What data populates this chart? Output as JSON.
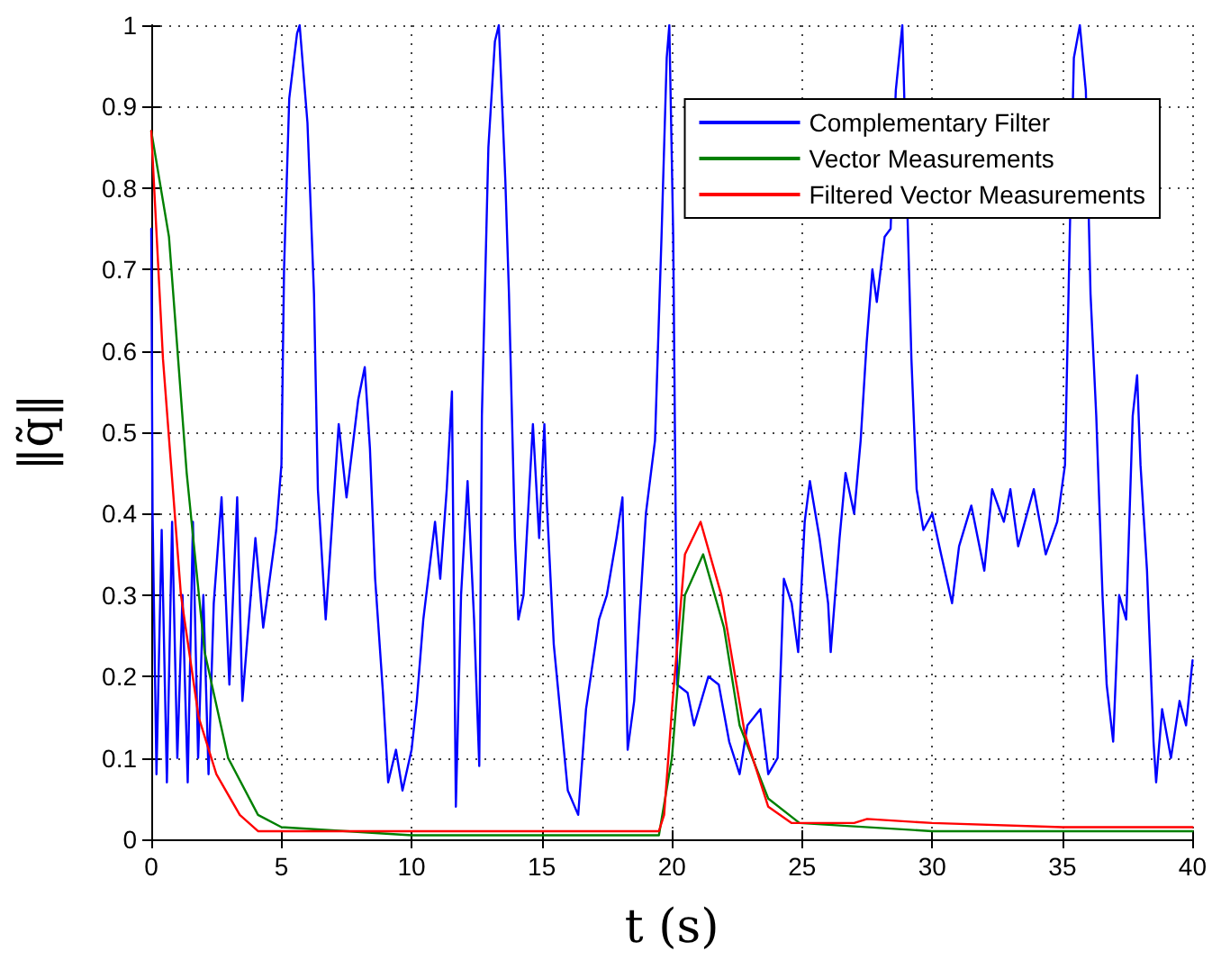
{
  "chart_data": {
    "type": "line",
    "xlabel": "t (s)",
    "ylabel": "‖q̃‖",
    "xlim": [
      0,
      40
    ],
    "xticks": [
      0,
      5,
      10,
      15,
      20,
      25,
      30,
      35,
      40
    ],
    "ylim": [
      0,
      1
    ],
    "yticks": [
      0,
      0.1,
      0.2,
      0.3,
      0.4,
      0.5,
      0.6,
      0.7,
      0.8,
      0.9,
      1
    ],
    "grid": true,
    "legend": "top right",
    "marker": "none",
    "line_style": "solid",
    "series": [
      {
        "name": "Complementary Filter",
        "color": "#0000ff",
        "x": [
          0,
          0.05,
          0.2,
          0.4,
          0.6,
          0.8,
          1.0,
          1.2,
          1.4,
          1.6,
          1.8,
          2.0,
          2.2,
          2.4,
          2.7,
          3.0,
          3.3,
          3.5,
          4.0,
          4.3,
          4.8,
          5.0,
          5.1,
          5.3,
          5.6,
          5.7,
          6.0,
          6.25,
          6.4,
          6.7,
          6.95,
          7.2,
          7.5,
          7.95,
          8.2,
          8.4,
          8.6,
          8.9,
          9.1,
          9.4,
          9.65,
          10.0,
          10.2,
          10.45,
          10.9,
          11.1,
          11.35,
          11.55,
          11.7,
          11.9,
          12.15,
          12.4,
          12.6,
          12.7,
          12.95,
          13.2,
          13.35,
          13.6,
          13.74,
          13.97,
          14.1,
          14.3,
          14.66,
          14.9,
          15.1,
          15.2,
          15.46,
          15.7,
          16.0,
          16.4,
          16.7,
          17.2,
          17.5,
          17.87,
          18.1,
          18.3,
          18.55,
          19.0,
          19.35,
          19.6,
          19.8,
          19.9,
          20.05,
          20.2,
          20.6,
          20.85,
          21.4,
          21.8,
          22.2,
          22.6,
          22.9,
          23.4,
          23.7,
          24.06,
          24.3,
          24.6,
          24.85,
          25.1,
          25.3,
          25.67,
          26.0,
          26.1,
          26.44,
          26.67,
          27.0,
          27.25,
          27.48,
          27.7,
          27.87,
          28.17,
          28.4,
          28.6,
          28.85,
          29.0,
          29.2,
          29.4,
          29.66,
          30.0,
          30.34,
          30.76,
          31.03,
          31.5,
          32.0,
          32.3,
          32.75,
          33.0,
          33.3,
          33.9,
          34.36,
          34.8,
          35.1,
          35.28,
          35.44,
          35.67,
          35.9,
          36.08,
          36.3,
          36.54,
          36.7,
          36.95,
          37.18,
          37.45,
          37.7,
          37.87,
          38.0,
          38.25,
          38.5,
          38.6,
          38.83,
          39.17,
          39.5,
          39.75,
          40
        ],
        "values": [
          0.75,
          0.4,
          0.08,
          0.38,
          0.07,
          0.39,
          0.1,
          0.3,
          0.07,
          0.39,
          0.1,
          0.3,
          0.08,
          0.29,
          0.42,
          0.19,
          0.42,
          0.17,
          0.37,
          0.26,
          0.38,
          0.46,
          0.7,
          0.91,
          0.99,
          1.0,
          0.88,
          0.67,
          0.43,
          0.27,
          0.39,
          0.51,
          0.42,
          0.54,
          0.58,
          0.48,
          0.32,
          0.18,
          0.07,
          0.11,
          0.06,
          0.11,
          0.17,
          0.27,
          0.39,
          0.32,
          0.43,
          0.55,
          0.04,
          0.3,
          0.44,
          0.27,
          0.09,
          0.52,
          0.85,
          0.98,
          1.0,
          0.81,
          0.67,
          0.37,
          0.27,
          0.3,
          0.51,
          0.37,
          0.51,
          0.41,
          0.24,
          0.16,
          0.06,
          0.03,
          0.16,
          0.27,
          0.3,
          0.37,
          0.42,
          0.11,
          0.17,
          0.4,
          0.49,
          0.74,
          0.96,
          1.0,
          0.74,
          0.19,
          0.18,
          0.14,
          0.2,
          0.19,
          0.12,
          0.08,
          0.14,
          0.16,
          0.08,
          0.1,
          0.32,
          0.29,
          0.23,
          0.39,
          0.44,
          0.37,
          0.29,
          0.23,
          0.37,
          0.45,
          0.4,
          0.49,
          0.61,
          0.7,
          0.66,
          0.74,
          0.75,
          0.92,
          1.0,
          null,
          0.59,
          0.43,
          0.38,
          0.4,
          0.35,
          0.29,
          0.36,
          0.41,
          0.33,
          0.43,
          0.39,
          0.43,
          0.36,
          0.43,
          0.35,
          0.39,
          0.46,
          0.74,
          0.96,
          1.0,
          0.92,
          0.67,
          0.52,
          0.3,
          0.19,
          0.12,
          0.3,
          0.27,
          0.52,
          0.57,
          0.46,
          0.33,
          0.12,
          0.07,
          0.16,
          0.1,
          0.17,
          0.14,
          0.22
        ]
      },
      {
        "name": "Vector Measurements",
        "color": "#008000",
        "x": [
          0,
          0.68,
          1.36,
          2.05,
          2.95,
          4.1,
          5,
          10,
          15,
          19.5,
          20,
          20.5,
          21.2,
          22,
          22.6,
          23.7,
          24.9,
          30,
          35,
          40
        ],
        "values": [
          0.87,
          0.74,
          0.45,
          0.23,
          0.1,
          0.03,
          0.015,
          0.005,
          0.005,
          0.005,
          0.1,
          0.3,
          0.35,
          0.26,
          0.14,
          0.05,
          0.02,
          0.01,
          0.01,
          0.01
        ]
      },
      {
        "name": "Filtered Vector Measurements",
        "color": "#ff0000",
        "x": [
          0,
          0.45,
          1.14,
          1.82,
          2.5,
          3.4,
          4.1,
          10,
          15,
          19.5,
          19.7,
          20,
          20.5,
          21.1,
          21.9,
          22.8,
          23.7,
          24.6,
          27,
          27.5,
          30,
          35,
          40
        ],
        "values": [
          0.87,
          0.59,
          0.3,
          0.15,
          0.08,
          0.03,
          0.01,
          0.01,
          0.01,
          0.01,
          0.03,
          0.16,
          0.35,
          0.39,
          0.3,
          0.13,
          0.04,
          0.02,
          0.02,
          0.025,
          0.02,
          0.015,
          0.015
        ]
      }
    ]
  }
}
